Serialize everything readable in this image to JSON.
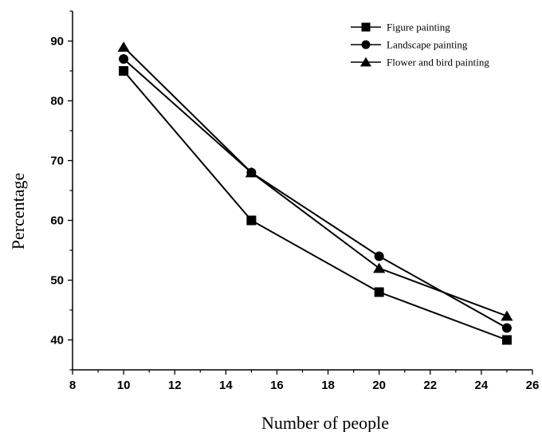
{
  "chart_data": {
    "type": "line",
    "title": "",
    "xlabel": "Number of people",
    "ylabel": "Percentage",
    "xlim": [
      8,
      26
    ],
    "ylim": [
      35,
      95
    ],
    "xticks": [
      8,
      10,
      12,
      14,
      16,
      18,
      20,
      22,
      24,
      26
    ],
    "yticks": [
      40,
      50,
      60,
      70,
      80,
      90
    ],
    "x": [
      10,
      15,
      20,
      25
    ],
    "grid": false,
    "legend_position": "top-right",
    "series": [
      {
        "name": "Figure painting",
        "marker": "square",
        "values": [
          85,
          60,
          48,
          40
        ]
      },
      {
        "name": "Landscape painting",
        "marker": "circle",
        "values": [
          87,
          68,
          54,
          42
        ]
      },
      {
        "name": "Flower and bird painting",
        "marker": "triangle",
        "values": [
          89,
          68,
          52,
          44
        ]
      }
    ],
    "color": "#000000"
  }
}
